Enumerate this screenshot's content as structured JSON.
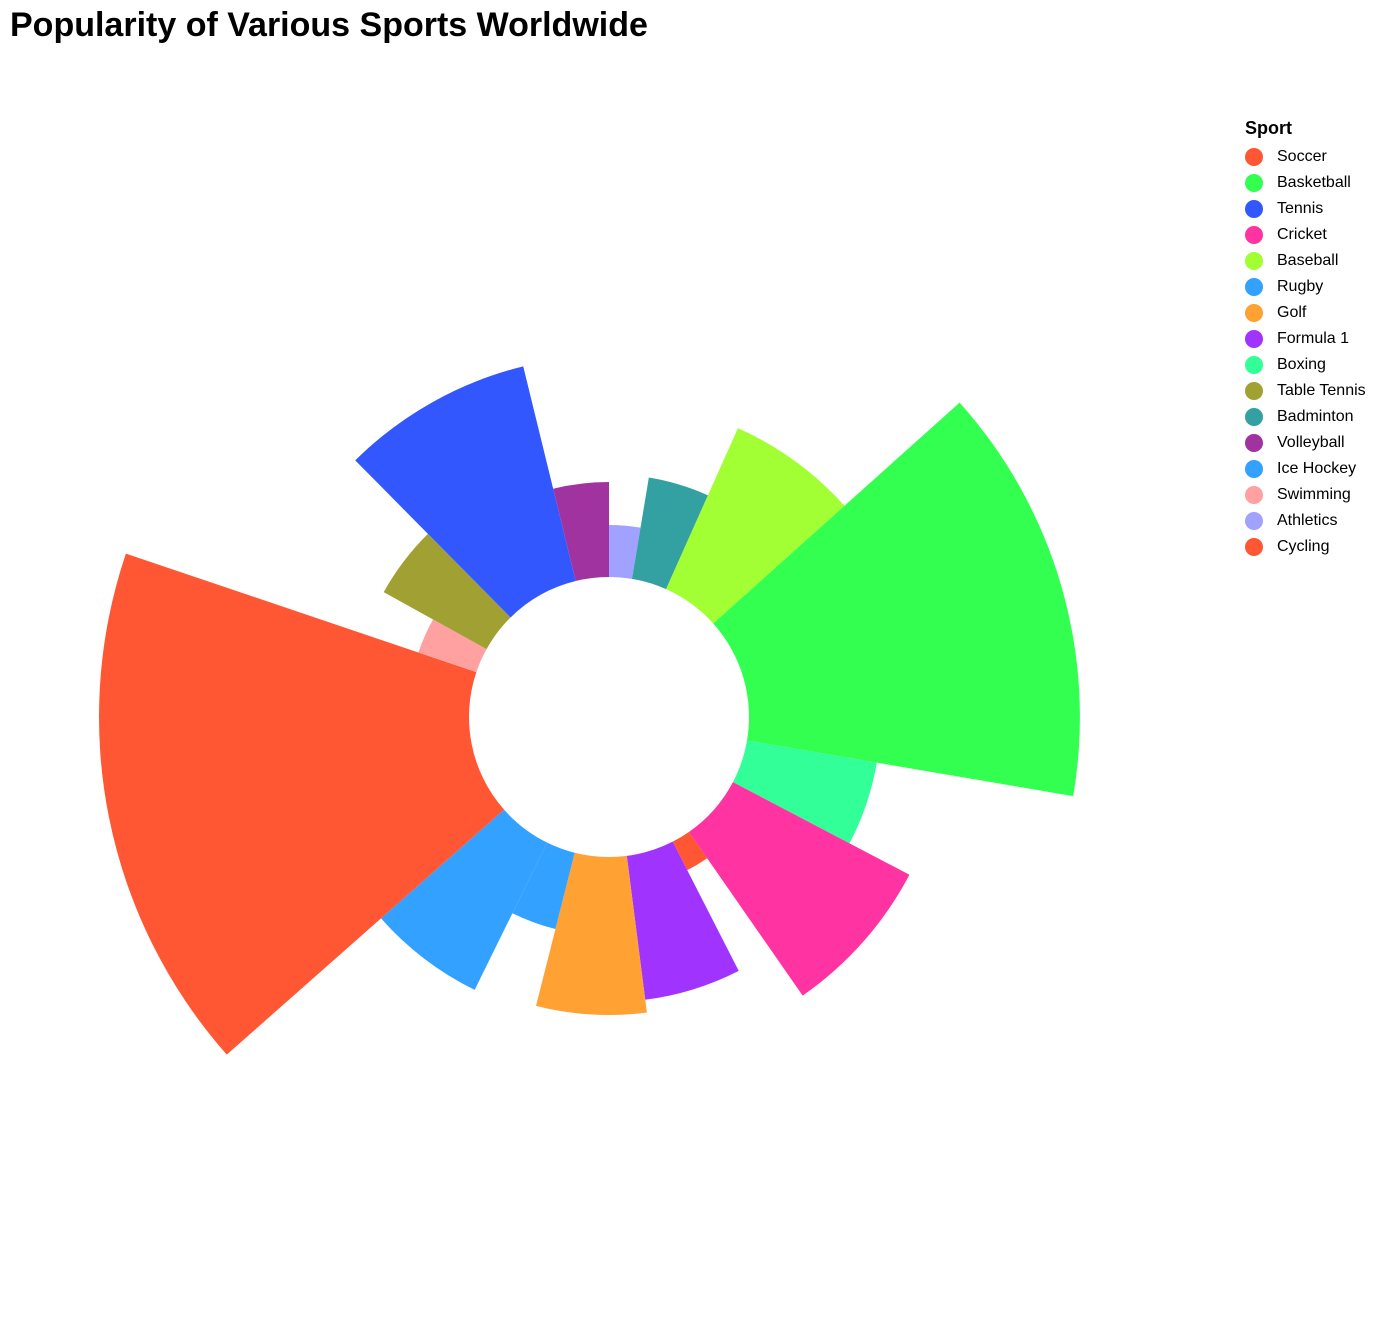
{
  "chart_data": {
    "type": "pie",
    "title": "Popularity of Various Sports Worldwide",
    "legend_title": "Sport",
    "legend_position": "right",
    "donut": true,
    "radius_encodes_value": true,
    "slices": [
      {
        "name": "Soccer",
        "value": 350,
        "color": "#ff5733"
      },
      {
        "name": "Basketball",
        "value": 300,
        "color": "#33ff51"
      },
      {
        "name": "Tennis",
        "value": 180,
        "color": "#3357ff"
      },
      {
        "name": "Cricket",
        "value": 160,
        "color": "#ff33a1"
      },
      {
        "name": "Baseball",
        "value": 140,
        "color": "#a1ff33"
      },
      {
        "name": "Rugby",
        "value": 130,
        "color": "#33a1ff"
      },
      {
        "name": "Golf",
        "value": 125,
        "color": "#ffa133"
      },
      {
        "name": "Formula 1",
        "value": 115,
        "color": "#a133ff"
      },
      {
        "name": "Boxing",
        "value": 105,
        "color": "#33ff99"
      },
      {
        "name": "Table Tennis",
        "value": 95,
        "color": "#a1a133"
      },
      {
        "name": "Badminton",
        "value": 85,
        "color": "#33a1a1"
      },
      {
        "name": "Volleyball",
        "value": 80,
        "color": "#a133a1"
      },
      {
        "name": "Ice Hockey",
        "value": 70,
        "color": "#33a1ff"
      },
      {
        "name": "Swimming",
        "value": 60,
        "color": "#ffa1a1"
      },
      {
        "name": "Athletics",
        "value": 55,
        "color": "#a1a1ff"
      },
      {
        "name": "Cycling",
        "value": 45,
        "color": "#ff5733"
      }
    ]
  }
}
